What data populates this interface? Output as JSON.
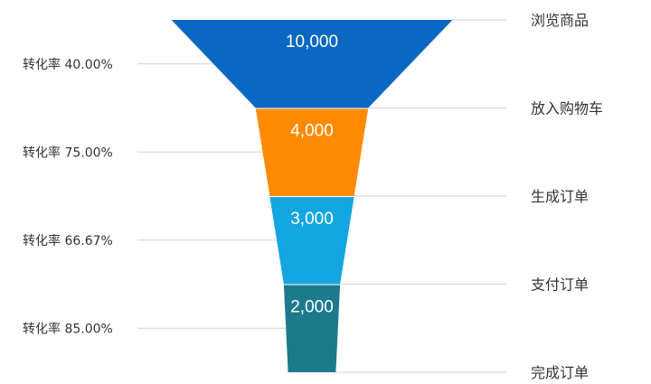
{
  "chart_data": {
    "type": "funnel",
    "stages": [
      {
        "name": "浏览商品",
        "value": 10000,
        "value_label": "10,000",
        "color": "#0a68c2"
      },
      {
        "name": "放入购物车",
        "value": 4000,
        "value_label": "4,000",
        "color": "#ff8a00"
      },
      {
        "name": "生成订单",
        "value": 3000,
        "value_label": "3,000",
        "color": "#13a6e0"
      },
      {
        "name": "支付订单",
        "value": 2000,
        "value_label": "2,000",
        "color": "#1c7a8c"
      },
      {
        "name": "完成订单",
        "value": 1700
      }
    ],
    "conversion_rates": [
      "转化率 40.00%",
      "转化率 75.00%",
      "转化率 66.67%",
      "转化率 85.00%"
    ]
  }
}
